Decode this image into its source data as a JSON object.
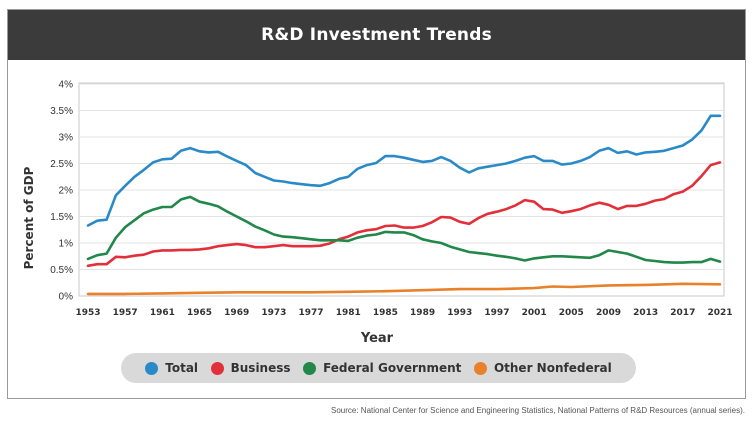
{
  "chart_data": {
    "type": "line",
    "title": "R&D Investment Trends",
    "xlabel": "Year",
    "ylabel": "Percent of GDP",
    "xlim": [
      1953,
      2021
    ],
    "ylim": [
      0,
      4
    ],
    "x_ticks": [
      "1953",
      "1957",
      "1961",
      "1965",
      "1969",
      "1973",
      "1977",
      "1981",
      "1985",
      "1989",
      "1993",
      "1997",
      "2001",
      "2005",
      "2009",
      "2013",
      "2017",
      "2021"
    ],
    "y_ticks": [
      "0%",
      "0.5%",
      "1%",
      "1.5%",
      "2%",
      "2.5%",
      "3%",
      "3.5%",
      "4%"
    ],
    "legend_position": "bottom",
    "source": "Source: National Center for Science and Engineering Statistics, National Patterns of R&D Resources (annual series).",
    "series": [
      {
        "name": "Total",
        "color": "#2a8ac8",
        "points": [
          [
            1953,
            1.33
          ],
          [
            1954,
            1.42
          ],
          [
            1955,
            1.44
          ],
          [
            1956,
            1.9
          ],
          [
            1957,
            2.08
          ],
          [
            1958,
            2.25
          ],
          [
            1959,
            2.38
          ],
          [
            1960,
            2.52
          ],
          [
            1961,
            2.58
          ],
          [
            1962,
            2.59
          ],
          [
            1963,
            2.74
          ],
          [
            1964,
            2.79
          ],
          [
            1965,
            2.73
          ],
          [
            1966,
            2.71
          ],
          [
            1967,
            2.72
          ],
          [
            1968,
            2.63
          ],
          [
            1969,
            2.55
          ],
          [
            1970,
            2.47
          ],
          [
            1971,
            2.32
          ],
          [
            1972,
            2.25
          ],
          [
            1973,
            2.18
          ],
          [
            1974,
            2.16
          ],
          [
            1975,
            2.13
          ],
          [
            1976,
            2.11
          ],
          [
            1977,
            2.09
          ],
          [
            1978,
            2.08
          ],
          [
            1979,
            2.13
          ],
          [
            1980,
            2.21
          ],
          [
            1981,
            2.25
          ],
          [
            1982,
            2.4
          ],
          [
            1983,
            2.47
          ],
          [
            1984,
            2.51
          ],
          [
            1985,
            2.64
          ],
          [
            1986,
            2.64
          ],
          [
            1987,
            2.61
          ],
          [
            1988,
            2.57
          ],
          [
            1989,
            2.53
          ],
          [
            1990,
            2.55
          ],
          [
            1991,
            2.62
          ],
          [
            1992,
            2.55
          ],
          [
            1993,
            2.42
          ],
          [
            1994,
            2.33
          ],
          [
            1995,
            2.41
          ],
          [
            1996,
            2.44
          ],
          [
            1997,
            2.47
          ],
          [
            1998,
            2.5
          ],
          [
            1999,
            2.55
          ],
          [
            2000,
            2.61
          ],
          [
            2001,
            2.64
          ],
          [
            2002,
            2.55
          ],
          [
            2003,
            2.55
          ],
          [
            2004,
            2.48
          ],
          [
            2005,
            2.5
          ],
          [
            2006,
            2.55
          ],
          [
            2007,
            2.62
          ],
          [
            2008,
            2.74
          ],
          [
            2009,
            2.79
          ],
          [
            2010,
            2.7
          ],
          [
            2011,
            2.73
          ],
          [
            2012,
            2.67
          ],
          [
            2013,
            2.71
          ],
          [
            2014,
            2.72
          ],
          [
            2015,
            2.74
          ],
          [
            2016,
            2.79
          ],
          [
            2017,
            2.84
          ],
          [
            2018,
            2.95
          ],
          [
            2019,
            3.12
          ],
          [
            2020,
            3.4
          ],
          [
            2021,
            3.4
          ]
        ]
      },
      {
        "name": "Business",
        "color": "#e2303a",
        "points": [
          [
            1953,
            0.57
          ],
          [
            1954,
            0.6
          ],
          [
            1955,
            0.6
          ],
          [
            1956,
            0.74
          ],
          [
            1957,
            0.73
          ],
          [
            1958,
            0.76
          ],
          [
            1959,
            0.78
          ],
          [
            1960,
            0.84
          ],
          [
            1961,
            0.86
          ],
          [
            1962,
            0.86
          ],
          [
            1963,
            0.87
          ],
          [
            1964,
            0.87
          ],
          [
            1965,
            0.88
          ],
          [
            1966,
            0.9
          ],
          [
            1967,
            0.94
          ],
          [
            1968,
            0.96
          ],
          [
            1969,
            0.98
          ],
          [
            1970,
            0.96
          ],
          [
            1971,
            0.92
          ],
          [
            1972,
            0.92
          ],
          [
            1973,
            0.94
          ],
          [
            1974,
            0.96
          ],
          [
            1975,
            0.94
          ],
          [
            1976,
            0.94
          ],
          [
            1977,
            0.94
          ],
          [
            1978,
            0.95
          ],
          [
            1979,
            0.99
          ],
          [
            1980,
            1.07
          ],
          [
            1981,
            1.12
          ],
          [
            1982,
            1.2
          ],
          [
            1983,
            1.24
          ],
          [
            1984,
            1.26
          ],
          [
            1985,
            1.32
          ],
          [
            1986,
            1.33
          ],
          [
            1987,
            1.29
          ],
          [
            1988,
            1.29
          ],
          [
            1989,
            1.32
          ],
          [
            1990,
            1.39
          ],
          [
            1991,
            1.49
          ],
          [
            1992,
            1.48
          ],
          [
            1993,
            1.4
          ],
          [
            1994,
            1.36
          ],
          [
            1995,
            1.47
          ],
          [
            1996,
            1.55
          ],
          [
            1997,
            1.59
          ],
          [
            1998,
            1.64
          ],
          [
            1999,
            1.71
          ],
          [
            2000,
            1.81
          ],
          [
            2001,
            1.78
          ],
          [
            2002,
            1.64
          ],
          [
            2003,
            1.63
          ],
          [
            2004,
            1.57
          ],
          [
            2005,
            1.6
          ],
          [
            2006,
            1.64
          ],
          [
            2007,
            1.71
          ],
          [
            2008,
            1.76
          ],
          [
            2009,
            1.72
          ],
          [
            2010,
            1.64
          ],
          [
            2011,
            1.7
          ],
          [
            2012,
            1.7
          ],
          [
            2013,
            1.74
          ],
          [
            2014,
            1.8
          ],
          [
            2015,
            1.83
          ],
          [
            2016,
            1.92
          ],
          [
            2017,
            1.97
          ],
          [
            2018,
            2.08
          ],
          [
            2019,
            2.26
          ],
          [
            2020,
            2.47
          ],
          [
            2021,
            2.52
          ]
        ]
      },
      {
        "name": "Federal Government",
        "color": "#21884a",
        "points": [
          [
            1953,
            0.7
          ],
          [
            1954,
            0.77
          ],
          [
            1955,
            0.8
          ],
          [
            1956,
            1.1
          ],
          [
            1957,
            1.3
          ],
          [
            1958,
            1.43
          ],
          [
            1959,
            1.56
          ],
          [
            1960,
            1.63
          ],
          [
            1961,
            1.68
          ],
          [
            1962,
            1.68
          ],
          [
            1963,
            1.82
          ],
          [
            1964,
            1.87
          ],
          [
            1965,
            1.78
          ],
          [
            1966,
            1.74
          ],
          [
            1967,
            1.69
          ],
          [
            1968,
            1.59
          ],
          [
            1969,
            1.5
          ],
          [
            1970,
            1.41
          ],
          [
            1971,
            1.31
          ],
          [
            1972,
            1.24
          ],
          [
            1973,
            1.16
          ],
          [
            1974,
            1.12
          ],
          [
            1975,
            1.11
          ],
          [
            1976,
            1.09
          ],
          [
            1977,
            1.07
          ],
          [
            1978,
            1.05
          ],
          [
            1979,
            1.05
          ],
          [
            1980,
            1.05
          ],
          [
            1981,
            1.04
          ],
          [
            1982,
            1.1
          ],
          [
            1983,
            1.14
          ],
          [
            1984,
            1.16
          ],
          [
            1985,
            1.21
          ],
          [
            1986,
            1.2
          ],
          [
            1987,
            1.2
          ],
          [
            1988,
            1.15
          ],
          [
            1989,
            1.07
          ],
          [
            1990,
            1.03
          ],
          [
            1991,
            1.0
          ],
          [
            1992,
            0.93
          ],
          [
            1993,
            0.88
          ],
          [
            1994,
            0.83
          ],
          [
            1995,
            0.81
          ],
          [
            1996,
            0.79
          ],
          [
            1997,
            0.76
          ],
          [
            1998,
            0.74
          ],
          [
            1999,
            0.71
          ],
          [
            2000,
            0.67
          ],
          [
            2001,
            0.71
          ],
          [
            2002,
            0.73
          ],
          [
            2003,
            0.75
          ],
          [
            2004,
            0.75
          ],
          [
            2005,
            0.74
          ],
          [
            2006,
            0.73
          ],
          [
            2007,
            0.72
          ],
          [
            2008,
            0.77
          ],
          [
            2009,
            0.86
          ],
          [
            2010,
            0.83
          ],
          [
            2011,
            0.8
          ],
          [
            2012,
            0.74
          ],
          [
            2013,
            0.68
          ],
          [
            2014,
            0.66
          ],
          [
            2015,
            0.64
          ],
          [
            2016,
            0.63
          ],
          [
            2017,
            0.63
          ],
          [
            2018,
            0.64
          ],
          [
            2019,
            0.64
          ],
          [
            2020,
            0.7
          ],
          [
            2021,
            0.65
          ]
        ]
      },
      {
        "name": "Other Nonfederal",
        "color": "#e8812a",
        "points": [
          [
            1953,
            0.04
          ],
          [
            1957,
            0.04
          ],
          [
            1961,
            0.05
          ],
          [
            1965,
            0.06
          ],
          [
            1969,
            0.07
          ],
          [
            1973,
            0.07
          ],
          [
            1977,
            0.07
          ],
          [
            1981,
            0.08
          ],
          [
            1985,
            0.09
          ],
          [
            1989,
            0.11
          ],
          [
            1993,
            0.13
          ],
          [
            1997,
            0.13
          ],
          [
            2001,
            0.15
          ],
          [
            2003,
            0.18
          ],
          [
            2005,
            0.17
          ],
          [
            2009,
            0.2
          ],
          [
            2013,
            0.21
          ],
          [
            2017,
            0.23
          ],
          [
            2021,
            0.22
          ]
        ]
      }
    ]
  }
}
